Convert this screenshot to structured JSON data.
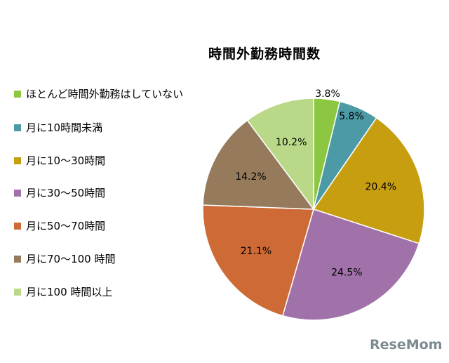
{
  "chart_data": {
    "type": "pie",
    "title": "時間外勤務時間数",
    "categories": [
      "ほとんど時間外勤務はしていない",
      "月に10時間未満",
      "月に10～30時間",
      "月に30～50時間",
      "月に50～70時間",
      "月に70～100 時間",
      "月に100 時間以上"
    ],
    "values": [
      3.8,
      5.8,
      20.4,
      24.5,
      21.1,
      14.2,
      10.2
    ],
    "labels": [
      "3.8%",
      "5.8%",
      "20.4%",
      "24.5%",
      "21.1%",
      "14.2%",
      "10.2%"
    ],
    "colors": [
      "#8dc641",
      "#4b9aa5",
      "#c79e10",
      "#a172aa",
      "#cd6a35",
      "#957a5c",
      "#b9d989"
    ],
    "legend_position": "left"
  },
  "watermark": "ReseMom"
}
